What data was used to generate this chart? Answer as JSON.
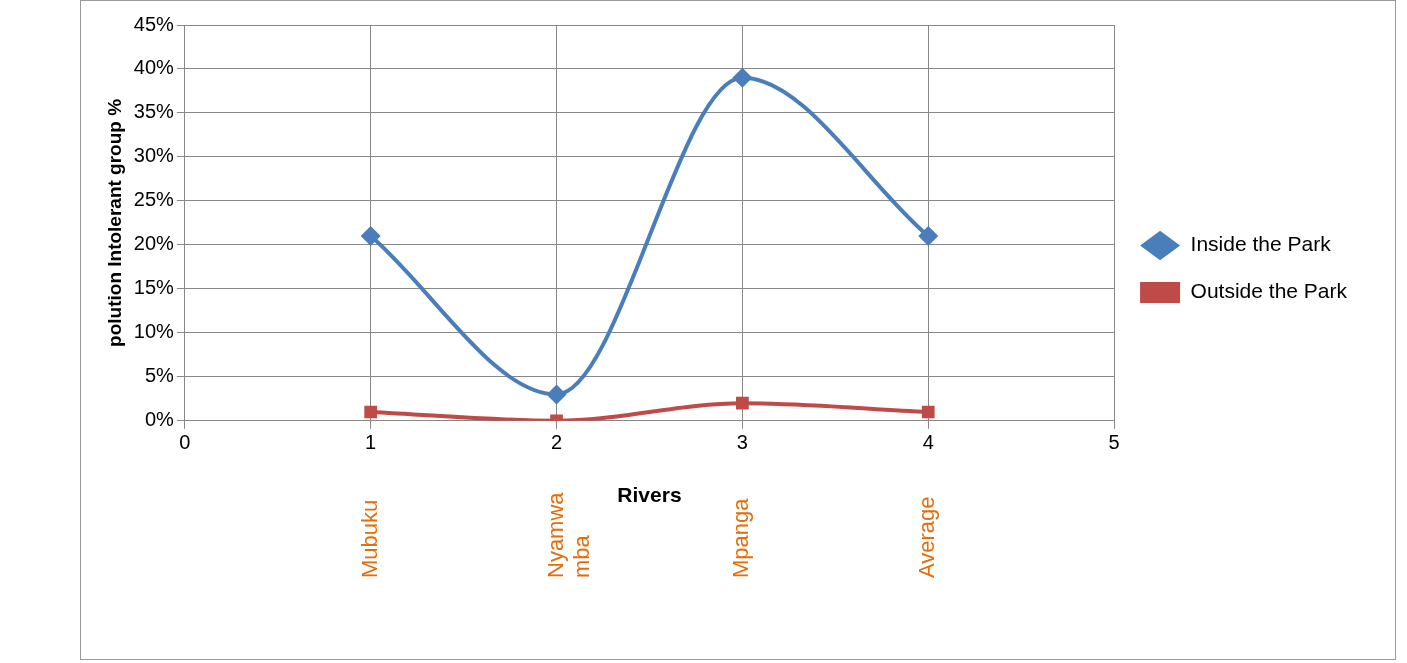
{
  "chart_data": {
    "type": "line",
    "xlabel": "Rivers",
    "ylabel": "polution Intolerant group %",
    "series": [
      {
        "name": "Inside the Park",
        "color": "#4a7ebb",
        "marker": "diamond",
        "x": [
          1,
          2,
          3,
          4
        ],
        "values": [
          21,
          3,
          39,
          21
        ]
      },
      {
        "name": "Outside the Park",
        "color": "#be4b48",
        "marker": "square",
        "x": [
          1,
          2,
          3,
          4
        ],
        "values": [
          1,
          0,
          2,
          1
        ]
      }
    ],
    "xlim": [
      0,
      5
    ],
    "xticks": [
      0,
      1,
      2,
      3,
      4,
      5
    ],
    "ylim": [
      0,
      45
    ],
    "yticks": [
      {
        "value": 0,
        "label": "0%"
      },
      {
        "value": 5,
        "label": "5%"
      },
      {
        "value": 10,
        "label": "10%"
      },
      {
        "value": 15,
        "label": "15%"
      },
      {
        "value": 20,
        "label": "20%"
      },
      {
        "value": 25,
        "label": "25%"
      },
      {
        "value": 30,
        "label": "30%"
      },
      {
        "value": 35,
        "label": "35%"
      },
      {
        "value": 40,
        "label": "40%"
      },
      {
        "value": 45,
        "label": "45%"
      }
    ],
    "annotations": [
      "Mubuku",
      "Nyamwamba",
      "Mpanga",
      "Average"
    ],
    "grid": true,
    "legend": "right",
    "line_style": "solid"
  }
}
